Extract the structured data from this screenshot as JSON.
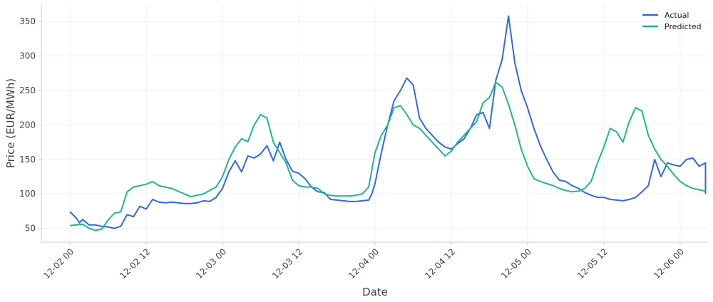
{
  "chart_data": {
    "type": "line",
    "title": "",
    "xlabel": "Date",
    "ylabel": "Price (EUR/MWh)",
    "x_ticks": [
      "12-02 00",
      "12-02 12",
      "12-03 00",
      "12-03 12",
      "12-04 00",
      "12-04 12",
      "12-05 00",
      "12-05 12",
      "12-06 00"
    ],
    "y_ticks": [
      50,
      100,
      150,
      200,
      250,
      300,
      350
    ],
    "ylim": [
      30,
      375
    ],
    "xlim_hours": [
      -4.5,
      100.5
    ],
    "grid": true,
    "legend_position": "top-right",
    "series": [
      {
        "name": "Actual",
        "color": "#2f6ae0",
        "points": [
          [
            0,
            74
          ],
          [
            1,
            65
          ],
          [
            1.5,
            58
          ],
          [
            2,
            63
          ],
          [
            3,
            55
          ],
          [
            4,
            55
          ],
          [
            5,
            53
          ],
          [
            6,
            52
          ],
          [
            7,
            50
          ],
          [
            8,
            53
          ],
          [
            9,
            70
          ],
          [
            10,
            67
          ],
          [
            11,
            82
          ],
          [
            12,
            78
          ],
          [
            13,
            92
          ],
          [
            14,
            88
          ],
          [
            15,
            87
          ],
          [
            16,
            88
          ],
          [
            17,
            87
          ],
          [
            18,
            86
          ],
          [
            19,
            86
          ],
          [
            20,
            87
          ],
          [
            21,
            90
          ],
          [
            22,
            89
          ],
          [
            23,
            95
          ],
          [
            24,
            108
          ],
          [
            25,
            132
          ],
          [
            26,
            148
          ],
          [
            27,
            132
          ],
          [
            28,
            155
          ],
          [
            29,
            152
          ],
          [
            30,
            158
          ],
          [
            31,
            170
          ],
          [
            32,
            148
          ],
          [
            33,
            175
          ],
          [
            34,
            150
          ],
          [
            35,
            133
          ],
          [
            36,
            130
          ],
          [
            37,
            122
          ],
          [
            38,
            110
          ],
          [
            39,
            103
          ],
          [
            40,
            102
          ],
          [
            41,
            92
          ],
          [
            42,
            91
          ],
          [
            43,
            90
          ],
          [
            44,
            89
          ],
          [
            45,
            89
          ],
          [
            46,
            90
          ],
          [
            47,
            91
          ],
          [
            47.5,
            100
          ],
          [
            48,
            115
          ],
          [
            49,
            160
          ],
          [
            50,
            200
          ],
          [
            51,
            235
          ],
          [
            52,
            250
          ],
          [
            53,
            268
          ],
          [
            54,
            258
          ],
          [
            55,
            210
          ],
          [
            56,
            195
          ],
          [
            57,
            185
          ],
          [
            58,
            175
          ],
          [
            59,
            168
          ],
          [
            60,
            165
          ],
          [
            61,
            173
          ],
          [
            62,
            180
          ],
          [
            63,
            195
          ],
          [
            64,
            215
          ],
          [
            65,
            218
          ],
          [
            66,
            195
          ],
          [
            67,
            265
          ],
          [
            68,
            295
          ],
          [
            69,
            358
          ],
          [
            70,
            290
          ],
          [
            71,
            250
          ],
          [
            72,
            225
          ],
          [
            73,
            195
          ],
          [
            74,
            170
          ],
          [
            75,
            150
          ],
          [
            76,
            132
          ],
          [
            77,
            120
          ],
          [
            78,
            118
          ],
          [
            79,
            112
          ],
          [
            80,
            108
          ],
          [
            81,
            102
          ],
          [
            82,
            98
          ],
          [
            83,
            95
          ],
          [
            84,
            95
          ],
          [
            85,
            92
          ],
          [
            86,
            91
          ],
          [
            87,
            90
          ],
          [
            88,
            92
          ],
          [
            89,
            95
          ],
          [
            90,
            103
          ],
          [
            91,
            112
          ],
          [
            92,
            150
          ],
          [
            93,
            125
          ],
          [
            94,
            145
          ],
          [
            95,
            142
          ],
          [
            96,
            140
          ],
          [
            97,
            150
          ],
          [
            98,
            152
          ],
          [
            99,
            140
          ],
          [
            100,
            145
          ],
          [
            100,
            100
          ]
        ]
      },
      {
        "name": "Predicted",
        "color": "#1fb887",
        "points": [
          [
            0,
            54
          ],
          [
            1,
            55
          ],
          [
            2,
            56
          ],
          [
            3,
            50
          ],
          [
            4,
            47
          ],
          [
            5,
            49
          ],
          [
            6,
            62
          ],
          [
            7,
            72
          ],
          [
            8,
            74
          ],
          [
            9,
            103
          ],
          [
            10,
            110
          ],
          [
            11,
            112
          ],
          [
            12,
            114
          ],
          [
            13,
            118
          ],
          [
            14,
            112
          ],
          [
            15,
            110
          ],
          [
            16,
            108
          ],
          [
            17,
            104
          ],
          [
            18,
            100
          ],
          [
            19,
            96
          ],
          [
            20,
            98
          ],
          [
            21,
            100
          ],
          [
            22,
            105
          ],
          [
            23,
            110
          ],
          [
            24,
            125
          ],
          [
            25,
            150
          ],
          [
            26,
            168
          ],
          [
            27,
            180
          ],
          [
            28,
            176
          ],
          [
            29,
            200
          ],
          [
            30,
            215
          ],
          [
            31,
            210
          ],
          [
            32,
            175
          ],
          [
            33,
            160
          ],
          [
            34,
            145
          ],
          [
            35,
            120
          ],
          [
            36,
            112
          ],
          [
            37,
            110
          ],
          [
            38,
            110
          ],
          [
            39,
            108
          ],
          [
            40,
            100
          ],
          [
            41,
            98
          ],
          [
            42,
            97
          ],
          [
            43,
            97
          ],
          [
            44,
            97
          ],
          [
            45,
            98
          ],
          [
            46,
            100
          ],
          [
            47,
            110
          ],
          [
            48,
            160
          ],
          [
            49,
            185
          ],
          [
            50,
            200
          ],
          [
            51,
            225
          ],
          [
            52,
            228
          ],
          [
            53,
            215
          ],
          [
            54,
            200
          ],
          [
            55,
            195
          ],
          [
            56,
            185
          ],
          [
            57,
            175
          ],
          [
            58,
            165
          ],
          [
            59,
            155
          ],
          [
            60,
            162
          ],
          [
            61,
            175
          ],
          [
            62,
            185
          ],
          [
            63,
            195
          ],
          [
            64,
            205
          ],
          [
            65,
            232
          ],
          [
            66,
            240
          ],
          [
            67,
            262
          ],
          [
            68,
            255
          ],
          [
            69,
            230
          ],
          [
            70,
            200
          ],
          [
            71,
            165
          ],
          [
            72,
            140
          ],
          [
            73,
            122
          ],
          [
            74,
            118
          ],
          [
            75,
            115
          ],
          [
            76,
            112
          ],
          [
            77,
            108
          ],
          [
            78,
            105
          ],
          [
            79,
            103
          ],
          [
            80,
            104
          ],
          [
            81,
            108
          ],
          [
            82,
            118
          ],
          [
            83,
            145
          ],
          [
            84,
            168
          ],
          [
            85,
            195
          ],
          [
            86,
            190
          ],
          [
            87,
            175
          ],
          [
            88,
            205
          ],
          [
            89,
            225
          ],
          [
            90,
            220
          ],
          [
            91,
            185
          ],
          [
            92,
            165
          ],
          [
            93,
            150
          ],
          [
            94,
            140
          ],
          [
            95,
            128
          ],
          [
            96,
            118
          ],
          [
            97,
            112
          ],
          [
            98,
            108
          ],
          [
            99,
            106
          ],
          [
            100,
            104
          ]
        ]
      }
    ]
  }
}
